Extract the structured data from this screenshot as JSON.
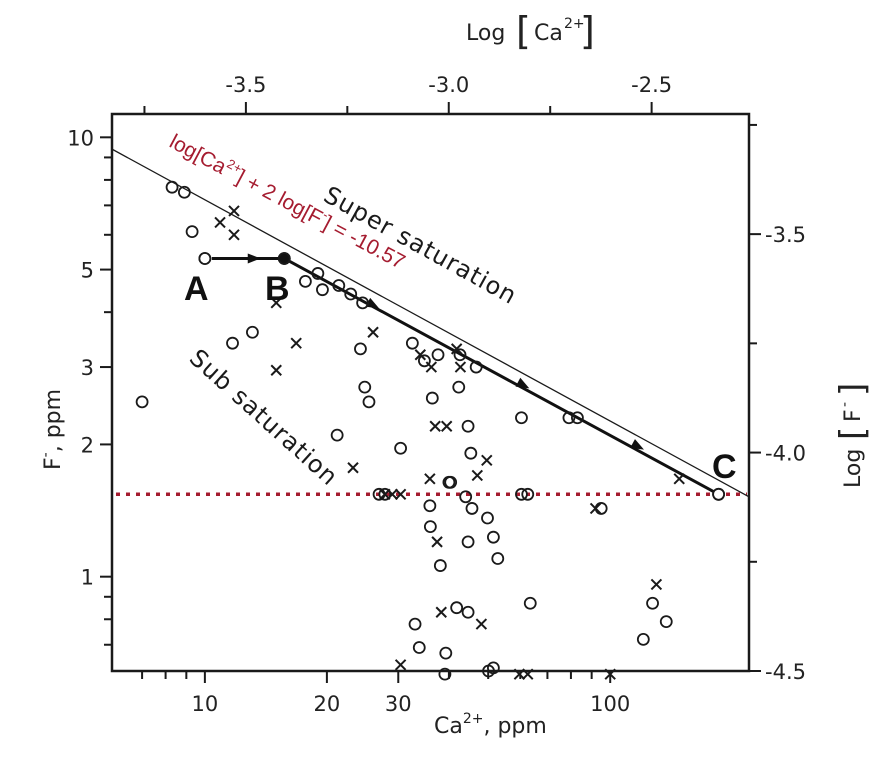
{
  "chart_data": {
    "type": "scatter",
    "title": "",
    "xlabel": "Ca2+, ppm",
    "ylabel": "F-, ppm",
    "top_xlabel": "Log [Ca2+]",
    "right_ylabel": "Log [F-]",
    "x_scale": "log",
    "y_scale": "log",
    "xlim": [
      5.9,
      220
    ],
    "ylim": [
      0.61,
      11.3
    ],
    "top_xlim": [
      -3.83,
      -2.26
    ],
    "right_ylim": [
      -4.5,
      -3.225
    ],
    "grid": false,
    "legend": null,
    "x_ticks": [
      10,
      20,
      30,
      100
    ],
    "x_tick_labels": [
      "10",
      "20",
      "30",
      "100"
    ],
    "x_minor_ticks": [
      7,
      8,
      9,
      40,
      50,
      60,
      70,
      80,
      90
    ],
    "y_ticks": [
      1,
      2,
      3,
      5,
      10
    ],
    "y_tick_labels": [
      "1",
      "2",
      "3",
      "5",
      "10"
    ],
    "y_minor_ticks": [
      0.7,
      0.8,
      0.9,
      4,
      6,
      7,
      8,
      9
    ],
    "top_x_ticks": [
      -3.5,
      -3.0,
      -2.5
    ],
    "top_x_tick_labels": [
      "-3.5",
      "-3.0",
      "-2.5"
    ],
    "top_x_minor_ticks": [
      -3.75,
      -3.25,
      -2.75
    ],
    "right_y_ticks": [
      -3.5,
      -4.0,
      -4.5
    ],
    "right_y_tick_labels": [
      "-3.5",
      "-4.0",
      "-4.5"
    ],
    "right_y_minor_ticks": [
      -3.25,
      -3.75,
      -4.25
    ],
    "series": [
      {
        "name": "circles",
        "marker": "o",
        "points": [
          [
            7.0,
            2.5
          ],
          [
            8.3,
            7.7
          ],
          [
            8.9,
            7.5
          ],
          [
            9.3,
            6.1
          ],
          [
            10.0,
            5.3
          ],
          [
            11.7,
            3.4
          ],
          [
            13.1,
            3.6
          ],
          [
            15.7,
            5.3
          ],
          [
            17.7,
            4.7
          ],
          [
            19.0,
            4.9
          ],
          [
            19.5,
            4.5
          ],
          [
            21.4,
            4.6
          ],
          [
            22.9,
            4.4
          ],
          [
            24.5,
            4.2
          ],
          [
            21.2,
            2.1
          ],
          [
            24.2,
            3.3
          ],
          [
            24.8,
            2.7
          ],
          [
            25.4,
            2.5
          ],
          [
            26.9,
            1.54
          ],
          [
            27.8,
            1.54
          ],
          [
            30.4,
            1.96
          ],
          [
            32.5,
            3.4
          ],
          [
            33.0,
            0.78
          ],
          [
            33.8,
            0.69
          ],
          [
            34.8,
            3.1
          ],
          [
            36.0,
            1.3
          ],
          [
            35.9,
            1.45
          ],
          [
            36.4,
            2.55
          ],
          [
            37.6,
            3.2
          ],
          [
            38.1,
            1.06
          ],
          [
            39.3,
            0.67
          ],
          [
            40.4,
            1.64
          ],
          [
            41.8,
            0.85
          ],
          [
            42.3,
            2.7
          ],
          [
            42.6,
            3.2
          ],
          [
            40.0,
            1.64
          ],
          [
            44.0,
            1.52
          ],
          [
            44.6,
            0.83
          ],
          [
            44.6,
            2.2
          ],
          [
            45.3,
            1.91
          ],
          [
            44.6,
            1.2
          ],
          [
            45.6,
            1.43
          ],
          [
            46.7,
            3.0
          ],
          [
            49.8,
            1.36
          ],
          [
            51.5,
            1.23
          ],
          [
            52.8,
            1.1
          ],
          [
            51.5,
            0.62
          ],
          [
            60.4,
            1.54
          ],
          [
            62.6,
            1.54
          ],
          [
            63.5,
            0.87
          ],
          [
            60.4,
            2.3
          ],
          [
            79.1,
            2.3
          ],
          [
            83.0,
            2.3
          ],
          [
            95.0,
            1.43
          ],
          [
            120.7,
            0.72
          ],
          [
            127.2,
            0.87
          ],
          [
            137.5,
            0.79
          ],
          [
            185.1,
            1.54
          ],
          [
            39.1,
            0.6
          ],
          [
            50.1,
            0.61
          ]
        ]
      },
      {
        "name": "crosses",
        "marker": "x",
        "points": [
          [
            10.9,
            6.4
          ],
          [
            11.8,
            6.8
          ],
          [
            11.8,
            6.0
          ],
          [
            15.0,
            4.2
          ],
          [
            16.8,
            3.4
          ],
          [
            15.0,
            2.95
          ],
          [
            23.2,
            1.77
          ],
          [
            27.8,
            1.54
          ],
          [
            29.0,
            1.54
          ],
          [
            30.4,
            1.54
          ],
          [
            30.4,
            0.63
          ],
          [
            26.0,
            3.6
          ],
          [
            34.0,
            3.2
          ],
          [
            35.9,
            1.67
          ],
          [
            37.0,
            2.2
          ],
          [
            36.2,
            3.0
          ],
          [
            37.4,
            1.2
          ],
          [
            39.5,
            2.2
          ],
          [
            38.3,
            0.83
          ],
          [
            41.8,
            3.3
          ],
          [
            42.7,
            3.0
          ],
          [
            47.0,
            1.7
          ],
          [
            49.6,
            1.84
          ],
          [
            48.1,
            0.78
          ],
          [
            59.7,
            0.6
          ],
          [
            62.6,
            0.6
          ],
          [
            92.0,
            1.43
          ],
          [
            100.0,
            0.6
          ],
          [
            130.0,
            0.96
          ],
          [
            148.0,
            1.67
          ]
        ]
      }
    ],
    "saturation_line": {
      "equation": "log[Ca2+] + 2 log[F-] = -10.57",
      "from": [
        5.9,
        9.4
      ],
      "to": [
        220,
        1.52
      ]
    },
    "path": {
      "A": [
        10.0,
        5.3
      ],
      "B": [
        15.7,
        5.3
      ],
      "C": [
        185.1,
        1.54
      ],
      "arrows_AB": [
        [
          13.2,
          5.3
        ]
      ],
      "arrows_BC": [
        [
          26.0,
          4.15
        ],
        [
          61.0,
          2.73
        ],
        [
          117.0,
          1.98
        ]
      ]
    },
    "reference_line": {
      "y": 1.54,
      "style": "dotted",
      "color": "#a51c30"
    },
    "annotations": [
      {
        "text": "Super saturation",
        "x": 24.0,
        "y": 5.0,
        "rotation": 29
      },
      {
        "text": "Sub saturation",
        "x": 11.0,
        "y": 3.1,
        "rotation": 42
      },
      {
        "text": "A",
        "x": 10.0,
        "y": 4.2
      },
      {
        "text": "B",
        "x": 15.7,
        "y": 4.2
      },
      {
        "text": "C",
        "x": 175.0,
        "y": 1.85
      }
    ]
  },
  "labels": {
    "x_axis_title": "Ca",
    "x_axis_sup": "2+",
    "x_axis_unit": ", ppm",
    "y_axis_title": "F",
    "y_axis_sup": "-",
    "y_axis_unit": ", ppm",
    "top_axis_prefix": "Log",
    "top_axis_species": "Ca",
    "top_axis_sup": "2+",
    "right_axis_prefix": "Log",
    "right_axis_species": "F",
    "right_axis_sup": "-",
    "equation_part1": "log[Ca",
    "equation_sup1": "2+",
    "equation_part2": "] + 2 log[F",
    "equation_sup2": "-",
    "equation_part3": "] = -10.57",
    "super_saturation": "Super saturation",
    "sub_saturation": "Sub saturation",
    "point_a": "A",
    "point_b": "B",
    "point_c": "C"
  },
  "colors": {
    "axis": "#1a1a1a",
    "marker": "#1a1a1a",
    "equation": "#a51c30",
    "reference_line": "#a51c30"
  }
}
